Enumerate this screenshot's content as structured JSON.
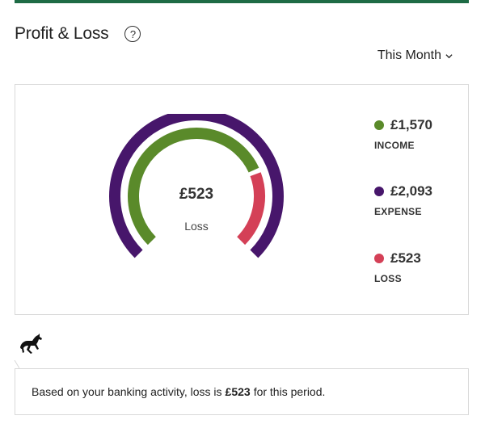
{
  "header": {
    "title": "Profit & Loss",
    "help_icon": "help-circle-icon",
    "period_label": "This Month"
  },
  "gauge": {
    "center_value": "£523",
    "center_label": "Loss",
    "income_fraction": 0.75,
    "loss_fraction": 0.25,
    "colors": {
      "expense": "#47166b",
      "income": "#5a8a2a",
      "loss": "#d44057"
    }
  },
  "legend": [
    {
      "value": "£1,570",
      "label": "INCOME",
      "color": "#5a8a2a"
    },
    {
      "value": "£2,093",
      "label": "EXPENSE",
      "color": "#47166b"
    },
    {
      "value": "£523",
      "label": "LOSS",
      "color": "#d44057"
    }
  ],
  "message": {
    "prefix": "Based on your banking activity, loss is ",
    "amount": "£523",
    "suffix": " for this period."
  },
  "brand": {
    "accent": "#1e6b45",
    "logo": "black-horse-logo"
  }
}
